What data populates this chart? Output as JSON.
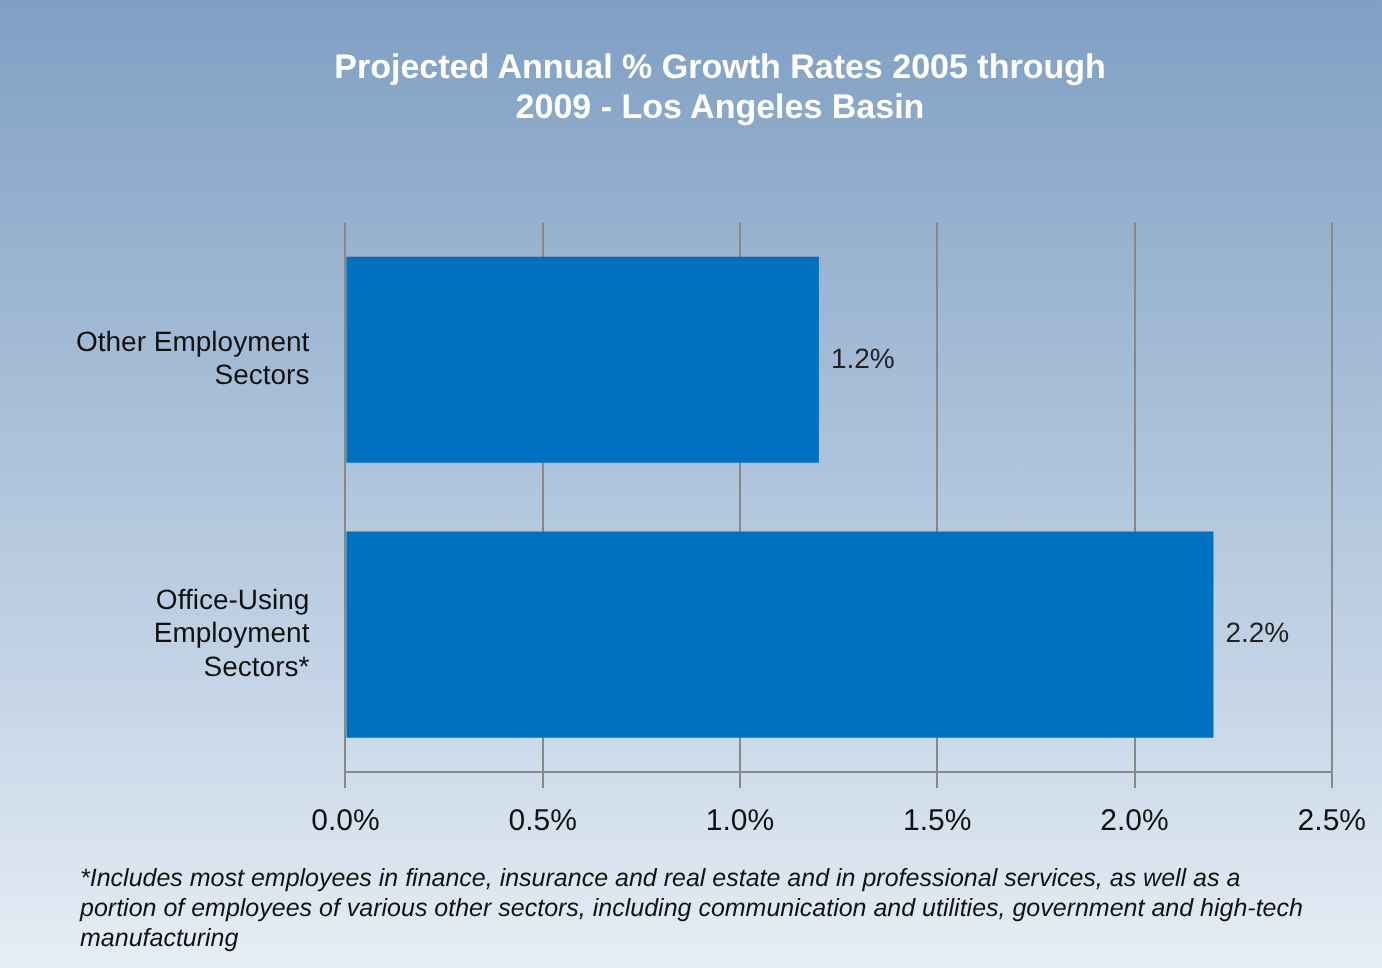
{
  "chart_data": {
    "type": "bar",
    "orientation": "horizontal",
    "title": "Projected Annual % Growth Rates 2005 through 2009 - Los Angeles Basin",
    "categories": [
      "Other Employment Sectors",
      "Office-Using Employment Sectors*"
    ],
    "values": [
      1.2,
      2.2
    ],
    "color": "#0070c0",
    "value_labels": [
      "1.2%",
      "2.2%"
    ],
    "xlim": [
      0,
      2.5
    ],
    "xticks": [
      {
        "value": 0,
        "label": "0.0%"
      },
      {
        "value": 0.5,
        "label": "0.5%"
      },
      {
        "value": 1,
        "label": "1.0%"
      },
      {
        "value": 1.5,
        "label": "1.5%"
      },
      {
        "value": 2,
        "label": "2.0%"
      },
      {
        "value": 2.5,
        "label": "2.5%"
      }
    ],
    "grid": "x",
    "legend": false,
    "annotations": [
      "*Includes most employees in finance, insurance and real estate and in professional services, as well as a portion of employees of various other sectors, including communication and utilities, government and high-tech manufacturing"
    ]
  }
}
